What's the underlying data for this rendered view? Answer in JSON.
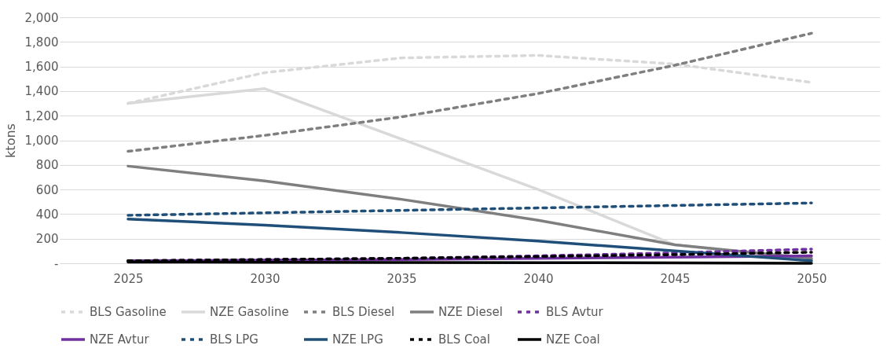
{
  "chart_data": {
    "type": "line",
    "ylabel": "ktons",
    "categories": [
      "2025",
      "2030",
      "2035",
      "2040",
      "2045",
      "2050"
    ],
    "ylim": [
      0,
      2000
    ],
    "yticks": [
      {
        "value": 0,
        "label": "-"
      },
      {
        "value": 200,
        "label": "200"
      },
      {
        "value": 400,
        "label": "400"
      },
      {
        "value": 600,
        "label": "600"
      },
      {
        "value": 800,
        "label": "800"
      },
      {
        "value": 1000,
        "label": "1,000"
      },
      {
        "value": 1200,
        "label": "1,200"
      },
      {
        "value": 1400,
        "label": "1,400"
      },
      {
        "value": 1600,
        "label": "1,600"
      },
      {
        "value": 1800,
        "label": "1,800"
      },
      {
        "value": 2000,
        "label": "2,000"
      }
    ],
    "grid": "y",
    "legend": "bottom",
    "series": [
      {
        "name": "BLS Gasoline",
        "color": "#d9d9d9",
        "line_style": "dashed",
        "values": [
          1300,
          1550,
          1670,
          1690,
          1620,
          1470
        ]
      },
      {
        "name": "NZE Gasoline",
        "color": "#d9d9d9",
        "line_style": "solid",
        "values": [
          1300,
          1420,
          1010,
          600,
          150,
          30
        ]
      },
      {
        "name": "BLS Diesel",
        "color": "#7f7f7f",
        "line_style": "dashed",
        "values": [
          910,
          1040,
          1190,
          1380,
          1610,
          1870
        ]
      },
      {
        "name": "NZE Diesel",
        "color": "#7f7f7f",
        "line_style": "solid",
        "values": [
          790,
          670,
          520,
          350,
          150,
          40
        ]
      },
      {
        "name": "BLS Avtur",
        "color": "#7030a0",
        "line_style": "dashed",
        "values": [
          20,
          30,
          40,
          60,
          85,
          115
        ]
      },
      {
        "name": "NZE Avtur",
        "color": "#7030a0",
        "line_style": "solid",
        "values": [
          20,
          25,
          30,
          40,
          50,
          60
        ]
      },
      {
        "name": "BLS LPG",
        "color": "#1f4e79",
        "line_style": "dashed",
        "values": [
          390,
          410,
          430,
          450,
          470,
          490
        ]
      },
      {
        "name": "NZE LPG",
        "color": "#1f4e79",
        "line_style": "solid",
        "values": [
          360,
          310,
          250,
          180,
          100,
          20
        ]
      },
      {
        "name": "BLS Coal",
        "color": "#000000",
        "line_style": "dashed",
        "values": [
          20,
          30,
          40,
          55,
          70,
          90
        ]
      },
      {
        "name": "NZE Coal",
        "color": "#000000",
        "line_style": "solid",
        "values": [
          10,
          8,
          7,
          5,
          3,
          0
        ]
      }
    ]
  }
}
